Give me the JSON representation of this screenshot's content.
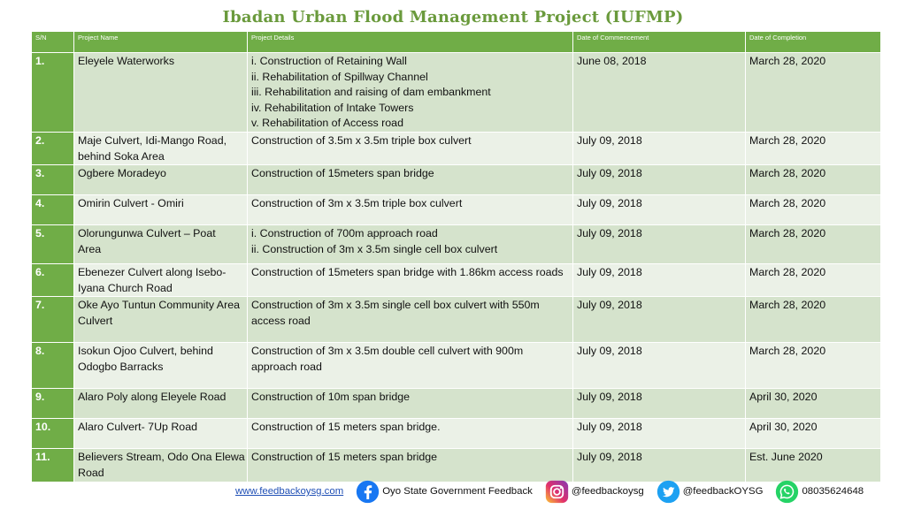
{
  "title": "Ibadan Urban Flood Management Project (IUFMP)",
  "table": {
    "headers": [
      "S/N",
      "Project Name",
      "Project Details",
      "Date of Commencement",
      "Date of Completion"
    ],
    "rows": [
      {
        "sn": "1.",
        "name": [
          "Eleyele Waterworks"
        ],
        "details": [
          "i. Construction of Retaining Wall",
          "ii. Rehabilitation of Spillway Channel",
          "iii. Rehabilitation and raising of dam embankment",
          "iv. Rehabilitation of Intake Towers",
          "v. Rehabilitation of Access road"
        ],
        "commencement": "June 08, 2018",
        "completion": "March 28, 2020"
      },
      {
        "sn": "2.",
        "name": [
          "Maje Culvert, Idi-Mango Road,",
          "behind Soka Area"
        ],
        "details": [
          "Construction of 3.5m x 3.5m triple box culvert"
        ],
        "commencement": "July 09, 2018",
        "completion": "March 28, 2020"
      },
      {
        "sn": "3.",
        "name": [
          "Ogbere Moradeyo"
        ],
        "details": [
          "Construction of 15meters span bridge"
        ],
        "commencement": "July 09, 2018",
        "completion": "March 28, 2020"
      },
      {
        "sn": "4.",
        "name": [
          "Omirin Culvert - Omiri"
        ],
        "details": [
          "Construction of 3m x 3.5m triple box culvert"
        ],
        "commencement": "July 09, 2018",
        "completion": "March 28, 2020"
      },
      {
        "sn": "5.",
        "name": [
          "Olorungunwa Culvert – Poat",
          "Area"
        ],
        "details": [
          "i. Construction of 700m approach road",
          "ii. Construction of 3m x 3.5m single cell box culvert"
        ],
        "commencement": "July 09, 2018",
        "completion": "March 28, 2020"
      },
      {
        "sn": "6.",
        "name": [
          "Ebenezer Culvert along Isebo-",
          "Iyana Church Road"
        ],
        "details": [
          "Construction of 15meters span bridge with 1.86km access roads"
        ],
        "commencement": "July 09, 2018",
        "completion": "March 28, 2020"
      },
      {
        "sn": "7.",
        "name": [
          "Oke Ayo Tuntun Community Area",
          "Culvert"
        ],
        "details": [
          "Construction of 3m x 3.5m single cell box culvert with 550m",
          "access road"
        ],
        "commencement": "July 09, 2018",
        "completion": "March 28, 2020"
      },
      {
        "sn": "8.",
        "name": [
          "Isokun Ojoo Culvert, behind",
          "Odogbo Barracks"
        ],
        "details": [
          "Construction of 3m x 3.5m double cell culvert with 900m",
          "approach road"
        ],
        "commencement": "July 09, 2018",
        "completion": "March 28, 2020"
      },
      {
        "sn": "9.",
        "name": [
          "Alaro Poly along Eleyele Road"
        ],
        "details": [
          "Construction of 10m span bridge"
        ],
        "commencement": "July 09, 2018",
        "completion": "April 30, 2020"
      },
      {
        "sn": "10.",
        "name": [
          "Alaro Culvert- 7Up Road"
        ],
        "details": [
          "Construction of 15 meters span bridge."
        ],
        "commencement": "July 09, 2018",
        "completion": "April 30, 2020"
      },
      {
        "sn": "11.",
        "name": [
          "Believers Stream, Odo Ona Elewa",
          "Road"
        ],
        "details": [
          "Construction of 15 meters span bridge"
        ],
        "commencement": "July 09, 2018",
        "completion": "Est. June 2020"
      }
    ]
  },
  "footer": {
    "website": "www.feedbackoysg.com",
    "facebook": "Oyo State Government Feedback",
    "instagram": "@feedbackoysg",
    "twitter": "@feedbackOYSG",
    "whatsapp": "08035624648",
    "icons": {
      "facebook": "facebook-icon",
      "instagram": "instagram-icon",
      "twitter": "twitter-icon",
      "whatsapp": "whatsapp-icon"
    }
  },
  "colors": {
    "header_green": "#70ad47",
    "title_green": "#6a9a3c",
    "row_dark": "#d5e3cc",
    "row_light": "#ebf1e7"
  }
}
